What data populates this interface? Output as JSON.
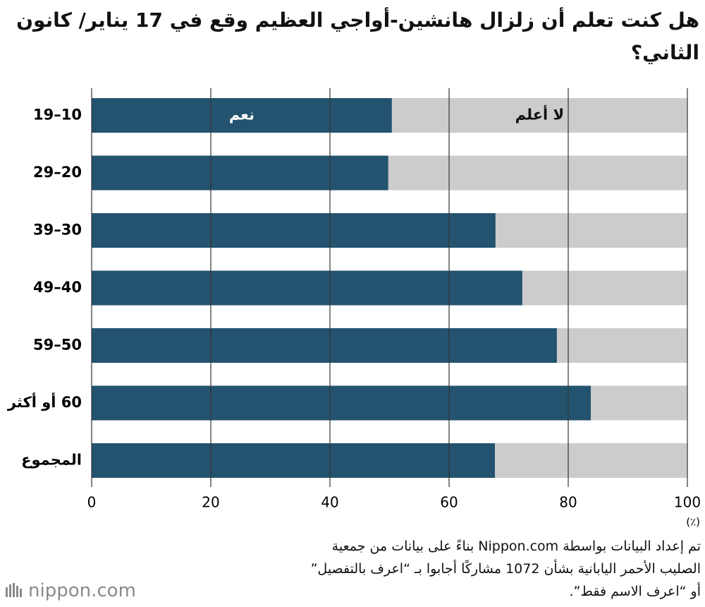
{
  "chart_data": {
    "type": "stacked-bar-horizontal",
    "title": "هل كنت تعلم أن زلزال هانشين-أواجي العظيم وقع في 17 يناير/ كانون الثاني؟",
    "categories": [
      "19–10",
      "29–20",
      "39–30",
      "49–40",
      "59–50",
      "60 أو أكثر",
      "المجموع"
    ],
    "series": [
      {
        "name": "نعم",
        "color": "#23536f",
        "values": [
          50.4,
          49.8,
          67.8,
          72.3,
          78.1,
          83.8,
          67.7
        ]
      },
      {
        "name": "لا أعلم",
        "color": "#cccccc",
        "values": [
          49.6,
          50.2,
          32.2,
          27.7,
          21.9,
          16.2,
          32.3
        ]
      }
    ],
    "xlim": [
      0,
      100
    ],
    "xticks": [
      0,
      20,
      40,
      60,
      80,
      100
    ],
    "x_unit": "(٪)",
    "grid": true,
    "source_note": [
      "تم إعداد البيانات بواسطة Nippon.com بناءً على بيانات من جمعية",
      "الصليب الأحمر اليابانية بشأن 1072 مشاركًا أجابوا بـ “اعرف بالتفصيل”",
      "أو “اعرف الاسم فقط”."
    ],
    "logo": "nippon.com"
  }
}
